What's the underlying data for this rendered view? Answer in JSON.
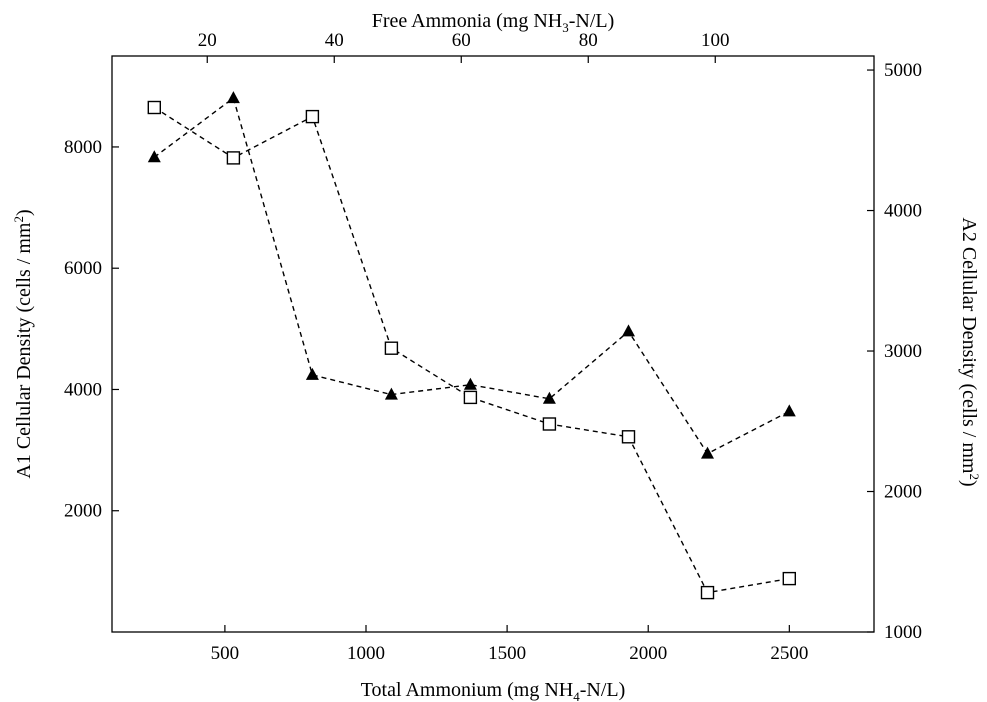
{
  "chart_data": {
    "type": "scatter",
    "title": "",
    "xlabel_bottom": {
      "text": "Total Ammonium (mg NH",
      "sub": "4",
      "tail": "-N/L)"
    },
    "xlabel_top": {
      "text": "Free Ammonia (mg NH",
      "sub": "3",
      "tail": "-N/L)"
    },
    "ylabel_left": {
      "text": "A1 Cellular Density (cells / mm",
      "sup": "2",
      "tail": ")"
    },
    "ylabel_right": {
      "text": "A2 Cellular Density (cells / mm",
      "sup": "2",
      "tail": ")"
    },
    "x_bottom": {
      "lim": [
        100,
        2800
      ],
      "ticks": [
        500,
        1000,
        1500,
        2000,
        2500
      ]
    },
    "x_top": {
      "lim": [
        5,
        125
      ],
      "ticks": [
        20,
        40,
        60,
        80,
        100
      ]
    },
    "y_left": {
      "lim": [
        0,
        9500
      ],
      "ticks": [
        2000,
        4000,
        6000,
        8000
      ]
    },
    "y_right": {
      "lim": [
        1000,
        5100
      ],
      "ticks": [
        1000,
        2000,
        3000,
        4000,
        5000
      ]
    },
    "grid": false,
    "series": [
      {
        "marker": "open-square",
        "axis": "left",
        "x": [
          250,
          530,
          810,
          1090,
          1370,
          1650,
          1930,
          2210,
          2500
        ],
        "y": [
          8650,
          7820,
          8500,
          4680,
          3870,
          3430,
          3220,
          650,
          880
        ]
      },
      {
        "marker": "filled-triangle",
        "axis": "right",
        "x": [
          250,
          530,
          810,
          1090,
          1370,
          1650,
          1930,
          2210,
          2500
        ],
        "y": [
          4380,
          4800,
          2830,
          2690,
          2760,
          2660,
          3140,
          2270,
          2570
        ]
      }
    ]
  }
}
